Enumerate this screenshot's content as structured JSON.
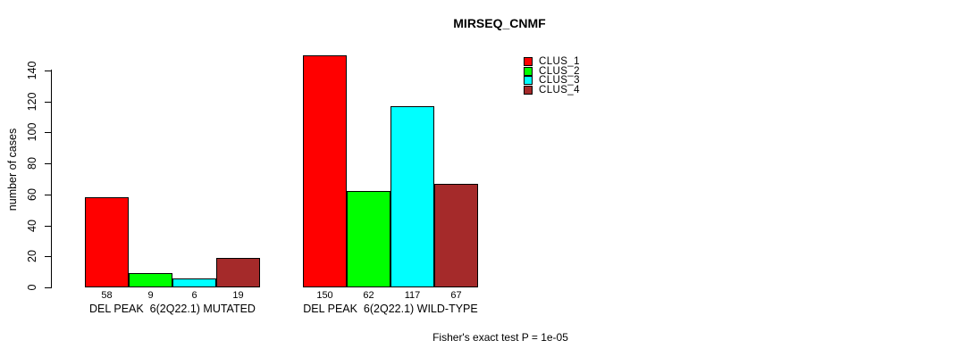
{
  "chart_data": {
    "type": "bar",
    "title": "MIRSEQ_CNMF",
    "xlabel": "",
    "ylabel": "number of cases",
    "ylim": [
      0,
      140
    ],
    "yticks": [
      0,
      20,
      40,
      60,
      80,
      100,
      120,
      140
    ],
    "grid": false,
    "legend_position": "right-top",
    "series": [
      {
        "name": "CLUS_1",
        "color": "#FF0000"
      },
      {
        "name": "CLUS_2",
        "color": "#00FF00"
      },
      {
        "name": "CLUS_3",
        "color": "#00FFFF"
      },
      {
        "name": "CLUS_4",
        "color": "#A52A2A"
      }
    ],
    "groups": [
      {
        "label": "DEL PEAK  6(2Q22.1) MUTATED",
        "values": [
          58,
          9,
          6,
          19
        ],
        "value_labels": [
          "58",
          "9",
          "6",
          "19"
        ]
      },
      {
        "label": "DEL PEAK  6(2Q22.1) WILD-TYPE",
        "values": [
          150,
          62,
          117,
          67
        ],
        "value_labels": [
          "150",
          "62",
          "117",
          "67"
        ]
      }
    ],
    "annotation": "Fisher's exact test P = 1e-05",
    "bar_border_color": "#000000",
    "background_color": "#FFFFFF"
  }
}
